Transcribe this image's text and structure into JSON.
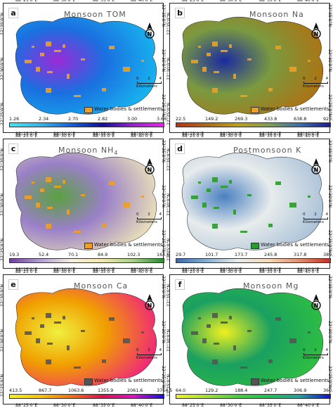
{
  "coords": {
    "top": [
      "88°25'0\"E",
      "88°30'0\"E",
      "88°35'0\"E",
      "88°40'0\"E"
    ],
    "side": [
      "22°35'0\"N",
      "22°30'0\"N",
      "22°25'0\"N"
    ]
  },
  "legend": {
    "water_settlements": "Water bodies & settlements",
    "scale_units": "Kilometers",
    "scale_ticks": [
      "0",
      "2",
      "4"
    ]
  },
  "panels": [
    {
      "letter": "a",
      "title": "Monsoon TOM",
      "legend_color": "#f0a020",
      "ticks": [
        "1.26",
        "2.34",
        "2.70",
        "2.82",
        "3.00",
        "3.66"
      ],
      "colors": [
        "#3fe6f2",
        "#30b8f0",
        "#1060e0",
        "#1010a0",
        "#9a20d8",
        "#f020f0"
      ]
    },
    {
      "letter": "b",
      "title": "Monsoon Na",
      "legend_color": "#f0a020",
      "ticks": [
        "22.5",
        "149.2",
        "269.3",
        "433.8",
        "638.8",
        "923.1"
      ],
      "colors": [
        "#c03010",
        "#b06a10",
        "#c0a010",
        "#80a050",
        "#3a70b0",
        "#1a1aa0"
      ]
    },
    {
      "letter": "c",
      "title": "Monsoon NH",
      "title_sub": "4",
      "legend_color": "#f0a020",
      "ticks": [
        "19.3",
        "52.4",
        "70.1",
        "84.9",
        "102.3",
        "163.6"
      ],
      "colors": [
        "#7040a0",
        "#b0a0d0",
        "#f4f0e0",
        "#f2e8b0",
        "#a8d088",
        "#2a8a30"
      ]
    },
    {
      "letter": "d",
      "title": "Postmonsoon K",
      "legend_color": "#2a9a2a",
      "ticks": [
        "29.7",
        "101.7",
        "173.7",
        "245.8",
        "317.8",
        "389.9"
      ],
      "colors": [
        "#3a6ab0",
        "#8ab0d0",
        "#e8ecec",
        "#f4d8b8",
        "#e09070",
        "#c03020"
      ]
    },
    {
      "letter": "e",
      "title": "Monsoon Ca",
      "legend_color": "#555555",
      "ticks": [
        "413.5",
        "867.7",
        "1063.6",
        "1355.9",
        "2061.6",
        "3764.5"
      ],
      "colors": [
        "#f0f020",
        "#f8c000",
        "#f07010",
        "#e0104a",
        "#e010c0",
        "#1010e0"
      ]
    },
    {
      "letter": "f",
      "title": "Monsoon Mg",
      "legend_color": "#555555",
      "ticks": [
        "64.0",
        "129.2",
        "188.4",
        "247.7",
        "306.9",
        "360.3"
      ],
      "colors": [
        "#f0f020",
        "#a0e030",
        "#40d040",
        "#20c050",
        "#20a0a0",
        "#1010d0"
      ]
    }
  ]
}
